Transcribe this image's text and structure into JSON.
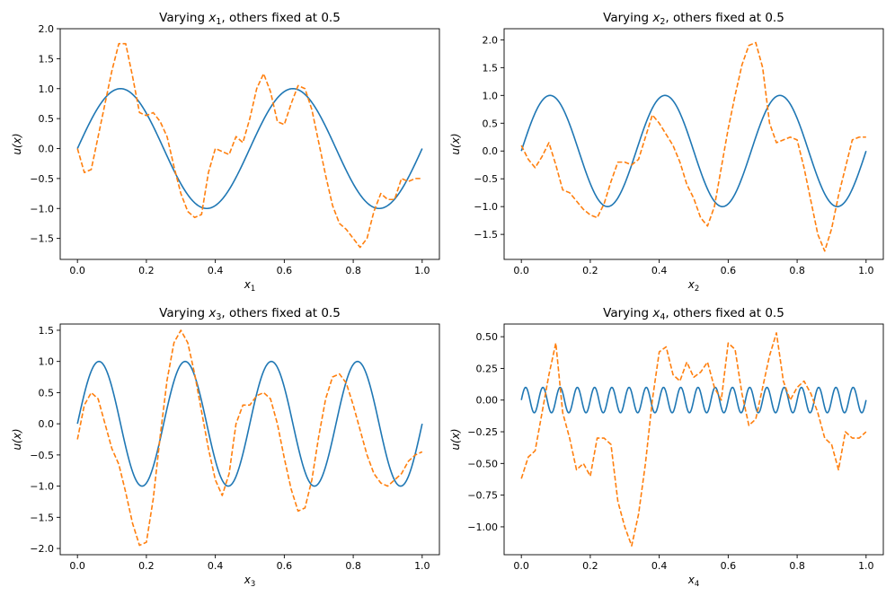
{
  "chart_data": [
    {
      "type": "line",
      "title": "Varying x1, others fixed at 0.5",
      "title_parts": {
        "prefix": "Varying ",
        "var": "x",
        "sub": "1",
        "suffix": ", others fixed at 0.5"
      },
      "xlabel": {
        "var": "x",
        "sub": "1"
      },
      "ylabel": "u(x)",
      "xlim": [
        -0.05,
        1.05
      ],
      "ylim": [
        -1.85,
        2.0
      ],
      "xticks": [
        0.0,
        0.2,
        0.4,
        0.6,
        0.8,
        1.0
      ],
      "xtick_labels": [
        "0.0",
        "0.2",
        "0.4",
        "0.6",
        "0.8",
        "1.0"
      ],
      "yticks": [
        -1.5,
        -1.0,
        -0.5,
        0.0,
        0.5,
        1.0,
        1.5,
        2.0
      ],
      "ytick_labels": [
        "−1.5",
        "−1.0",
        "−0.5",
        "0.0",
        "0.5",
        "1.0",
        "1.5",
        "2.0"
      ],
      "series": [
        {
          "style": "solid",
          "color": "#1f77b4",
          "formula": "sin",
          "freq": 2,
          "amp": 1,
          "x": [],
          "y": []
        },
        {
          "style": "dashed",
          "color": "#ff7f0e",
          "x": [
            0.0,
            0.02,
            0.04,
            0.06,
            0.08,
            0.1,
            0.12,
            0.14,
            0.16,
            0.18,
            0.2,
            0.22,
            0.24,
            0.26,
            0.28,
            0.3,
            0.32,
            0.34,
            0.36,
            0.38,
            0.4,
            0.42,
            0.44,
            0.46,
            0.48,
            0.5,
            0.52,
            0.54,
            0.56,
            0.58,
            0.6,
            0.62,
            0.64,
            0.66,
            0.68,
            0.7,
            0.72,
            0.74,
            0.76,
            0.78,
            0.8,
            0.82,
            0.84,
            0.86,
            0.88,
            0.9,
            0.92,
            0.94,
            0.96,
            0.98,
            1.0
          ],
          "y": [
            0.0,
            -0.4,
            -0.35,
            0.2,
            0.75,
            1.3,
            1.75,
            1.75,
            1.2,
            0.6,
            0.55,
            0.6,
            0.45,
            0.2,
            -0.3,
            -0.75,
            -1.05,
            -1.15,
            -1.1,
            -0.4,
            0.0,
            -0.05,
            -0.1,
            0.2,
            0.1,
            0.5,
            1.0,
            1.25,
            0.95,
            0.45,
            0.4,
            0.75,
            1.05,
            1.0,
            0.65,
            0.1,
            -0.45,
            -0.95,
            -1.25,
            -1.35,
            -1.5,
            -1.65,
            -1.5,
            -1.05,
            -0.75,
            -0.85,
            -0.85,
            -0.5,
            -0.55,
            -0.5,
            -0.5
          ]
        }
      ]
    },
    {
      "type": "line",
      "title": "Varying x2, others fixed at 0.5",
      "title_parts": {
        "prefix": "Varying ",
        "var": "x",
        "sub": "2",
        "suffix": ", others fixed at 0.5"
      },
      "xlabel": {
        "var": "x",
        "sub": "2"
      },
      "ylabel": "u(x)",
      "xlim": [
        -0.05,
        1.05
      ],
      "ylim": [
        -1.95,
        2.2
      ],
      "xticks": [
        0.0,
        0.2,
        0.4,
        0.6,
        0.8,
        1.0
      ],
      "xtick_labels": [
        "0.0",
        "0.2",
        "0.4",
        "0.6",
        "0.8",
        "1.0"
      ],
      "yticks": [
        -1.5,
        -1.0,
        -0.5,
        0.0,
        0.5,
        1.0,
        1.5,
        2.0
      ],
      "ytick_labels": [
        "−1.5",
        "−1.0",
        "−0.5",
        "0.0",
        "0.5",
        "1.0",
        "1.5",
        "2.0"
      ],
      "series": [
        {
          "style": "solid",
          "color": "#1f77b4",
          "formula": "sin",
          "freq": 3,
          "amp": 1,
          "x": [],
          "y": []
        },
        {
          "style": "dashed",
          "color": "#ff7f0e",
          "x": [
            0.0,
            0.02,
            0.04,
            0.06,
            0.08,
            0.1,
            0.12,
            0.14,
            0.16,
            0.18,
            0.2,
            0.22,
            0.24,
            0.26,
            0.28,
            0.3,
            0.32,
            0.34,
            0.36,
            0.38,
            0.4,
            0.42,
            0.44,
            0.46,
            0.48,
            0.5,
            0.52,
            0.54,
            0.56,
            0.58,
            0.6,
            0.62,
            0.64,
            0.66,
            0.68,
            0.7,
            0.72,
            0.74,
            0.76,
            0.78,
            0.8,
            0.82,
            0.84,
            0.86,
            0.88,
            0.9,
            0.92,
            0.94,
            0.96,
            0.98,
            1.0
          ],
          "y": [
            0.1,
            -0.15,
            -0.3,
            -0.1,
            0.15,
            -0.25,
            -0.7,
            -0.75,
            -0.9,
            -1.05,
            -1.15,
            -1.2,
            -0.95,
            -0.55,
            -0.2,
            -0.2,
            -0.25,
            -0.15,
            0.25,
            0.65,
            0.5,
            0.3,
            0.1,
            -0.2,
            -0.6,
            -0.85,
            -1.2,
            -1.35,
            -1.0,
            -0.3,
            0.4,
            1.0,
            1.55,
            1.9,
            1.95,
            1.5,
            0.5,
            0.15,
            0.2,
            0.25,
            0.2,
            -0.3,
            -0.9,
            -1.5,
            -1.8,
            -1.4,
            -0.8,
            -0.3,
            0.2,
            0.25,
            0.25
          ]
        }
      ]
    },
    {
      "type": "line",
      "title": "Varying x3, others fixed at 0.5",
      "title_parts": {
        "prefix": "Varying ",
        "var": "x",
        "sub": "3",
        "suffix": ", others fixed at 0.5"
      },
      "xlabel": {
        "var": "x",
        "sub": "3"
      },
      "ylabel": "u(x)",
      "xlim": [
        -0.05,
        1.05
      ],
      "ylim": [
        -2.1,
        1.6
      ],
      "xticks": [
        0.0,
        0.2,
        0.4,
        0.6,
        0.8,
        1.0
      ],
      "xtick_labels": [
        "0.0",
        "0.2",
        "0.4",
        "0.6",
        "0.8",
        "1.0"
      ],
      "yticks": [
        -2.0,
        -1.5,
        -1.0,
        -0.5,
        0.0,
        0.5,
        1.0,
        1.5
      ],
      "ytick_labels": [
        "−2.0",
        "−1.5",
        "−1.0",
        "−0.5",
        "0.0",
        "0.5",
        "1.0",
        "1.5"
      ],
      "series": [
        {
          "style": "solid",
          "color": "#1f77b4",
          "formula": "sin",
          "freq": 4,
          "amp": 1,
          "x": [],
          "y": []
        },
        {
          "style": "dashed",
          "color": "#ff7f0e",
          "x": [
            0.0,
            0.02,
            0.04,
            0.06,
            0.08,
            0.1,
            0.12,
            0.14,
            0.16,
            0.18,
            0.2,
            0.22,
            0.24,
            0.26,
            0.28,
            0.3,
            0.32,
            0.34,
            0.36,
            0.38,
            0.4,
            0.42,
            0.44,
            0.46,
            0.48,
            0.5,
            0.52,
            0.54,
            0.56,
            0.58,
            0.6,
            0.62,
            0.64,
            0.66,
            0.68,
            0.7,
            0.72,
            0.74,
            0.76,
            0.78,
            0.8,
            0.82,
            0.84,
            0.86,
            0.88,
            0.9,
            0.92,
            0.94,
            0.96,
            0.98,
            1.0
          ],
          "y": [
            -0.25,
            0.3,
            0.5,
            0.4,
            0.0,
            -0.4,
            -0.65,
            -1.1,
            -1.6,
            -1.95,
            -1.9,
            -1.2,
            -0.2,
            0.7,
            1.3,
            1.5,
            1.3,
            0.8,
            0.2,
            -0.4,
            -0.9,
            -1.15,
            -0.8,
            0.0,
            0.3,
            0.3,
            0.45,
            0.5,
            0.4,
            0.0,
            -0.55,
            -1.05,
            -1.4,
            -1.35,
            -0.9,
            -0.2,
            0.4,
            0.75,
            0.8,
            0.65,
            0.3,
            -0.1,
            -0.5,
            -0.8,
            -0.95,
            -1.0,
            -0.9,
            -0.8,
            -0.6,
            -0.5,
            -0.45
          ]
        }
      ]
    },
    {
      "type": "line",
      "title": "Varying x4, others fixed at 0.5",
      "title_parts": {
        "prefix": "Varying ",
        "var": "x",
        "sub": "4",
        "suffix": ", others fixed at 0.5"
      },
      "xlabel": {
        "var": "x",
        "sub": "4"
      },
      "ylabel": "u(x)",
      "xlim": [
        -0.05,
        1.05
      ],
      "ylim": [
        -1.22,
        0.6
      ],
      "xticks": [
        0.0,
        0.2,
        0.4,
        0.6,
        0.8,
        1.0
      ],
      "xtick_labels": [
        "0.0",
        "0.2",
        "0.4",
        "0.6",
        "0.8",
        "1.0"
      ],
      "yticks": [
        -1.0,
        -0.75,
        -0.5,
        -0.25,
        0.0,
        0.25,
        0.5
      ],
      "ytick_labels": [
        "−1.00",
        "−0.75",
        "−0.50",
        "−0.25",
        "0.00",
        "0.25",
        "0.50"
      ],
      "series": [
        {
          "style": "solid",
          "color": "#1f77b4",
          "formula": "sin",
          "freq": 20,
          "amp": 0.1,
          "x": [],
          "y": []
        },
        {
          "style": "dashed",
          "color": "#ff7f0e",
          "x": [
            0.0,
            0.02,
            0.04,
            0.06,
            0.08,
            0.1,
            0.12,
            0.14,
            0.16,
            0.18,
            0.2,
            0.22,
            0.24,
            0.26,
            0.28,
            0.3,
            0.32,
            0.34,
            0.36,
            0.38,
            0.4,
            0.42,
            0.44,
            0.46,
            0.48,
            0.5,
            0.52,
            0.54,
            0.56,
            0.58,
            0.6,
            0.62,
            0.64,
            0.66,
            0.68,
            0.7,
            0.72,
            0.74,
            0.76,
            0.78,
            0.8,
            0.82,
            0.84,
            0.86,
            0.88,
            0.9,
            0.92,
            0.94,
            0.96,
            0.98,
            1.0
          ],
          "y": [
            -0.62,
            -0.45,
            -0.4,
            -0.1,
            0.2,
            0.45,
            -0.1,
            -0.3,
            -0.55,
            -0.5,
            -0.6,
            -0.3,
            -0.3,
            -0.35,
            -0.8,
            -1.0,
            -1.15,
            -0.9,
            -0.5,
            0.0,
            0.38,
            0.42,
            0.2,
            0.15,
            0.3,
            0.18,
            0.22,
            0.3,
            0.1,
            0.0,
            0.45,
            0.4,
            0.05,
            -0.2,
            -0.15,
            0.1,
            0.35,
            0.53,
            0.15,
            0.0,
            0.1,
            0.15,
            0.05,
            -0.1,
            -0.3,
            -0.35,
            -0.55,
            -0.25,
            -0.3,
            -0.3,
            -0.25
          ]
        }
      ]
    }
  ]
}
